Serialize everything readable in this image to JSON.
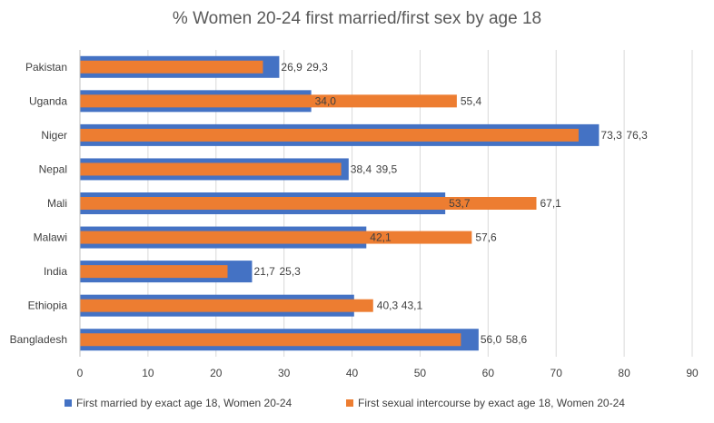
{
  "chart_data": {
    "type": "bar",
    "orientation": "horizontal",
    "title": "% Women 20-24 first married/first sex by age 18",
    "categories": [
      "Pakistan",
      "Uganda",
      "Niger",
      "Nepal",
      "Mali",
      "Malawi",
      "India",
      "Ethiopia",
      "Bangladesh"
    ],
    "series": [
      {
        "name": "First married by exact age 18, Women 20-24",
        "color": "#4472C4",
        "values": [
          29.3,
          34.0,
          76.3,
          39.5,
          53.7,
          42.1,
          25.3,
          40.3,
          58.6
        ],
        "labels": [
          "29,3",
          "34,0",
          "76,3",
          "39,5",
          "53,7",
          "42,1",
          "25,3",
          "40,3",
          "58,6"
        ]
      },
      {
        "name": "First sexual intercourse by exact age 18, Women 20-24",
        "color": "#ED7D31",
        "values": [
          26.9,
          55.4,
          73.3,
          38.4,
          67.1,
          57.6,
          21.7,
          43.1,
          56.0
        ],
        "labels": [
          "26,9",
          "55,4",
          "73,3",
          "38,4",
          "67,1",
          "57,6",
          "21,7",
          "43,1",
          "56,0"
        ]
      }
    ],
    "xlim": [
      0,
      90
    ],
    "xticks": [
      "0",
      "10",
      "20",
      "30",
      "40",
      "50",
      "60",
      "70",
      "80",
      "90"
    ],
    "grid": true,
    "legend": "bottom"
  }
}
